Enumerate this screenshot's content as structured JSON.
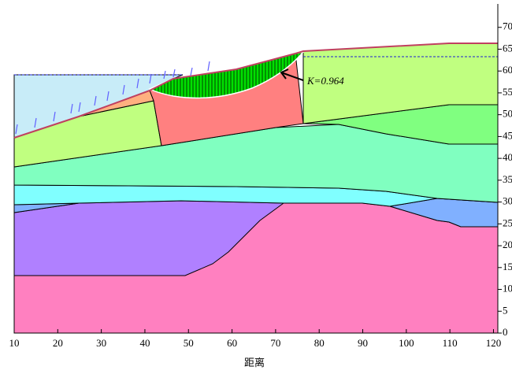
{
  "chart_data": {
    "type": "slope",
    "x_label": "距离",
    "annotation": "K=0.964",
    "xlim": [
      10,
      121
    ],
    "ylim": [
      0,
      75
    ],
    "xticks": [
      10,
      20,
      30,
      40,
      50,
      60,
      70,
      80,
      90,
      100,
      110,
      120
    ],
    "yticks": [
      0,
      5,
      10,
      15,
      20,
      25,
      30,
      35,
      40,
      45,
      50,
      55,
      60,
      65,
      70
    ]
  }
}
